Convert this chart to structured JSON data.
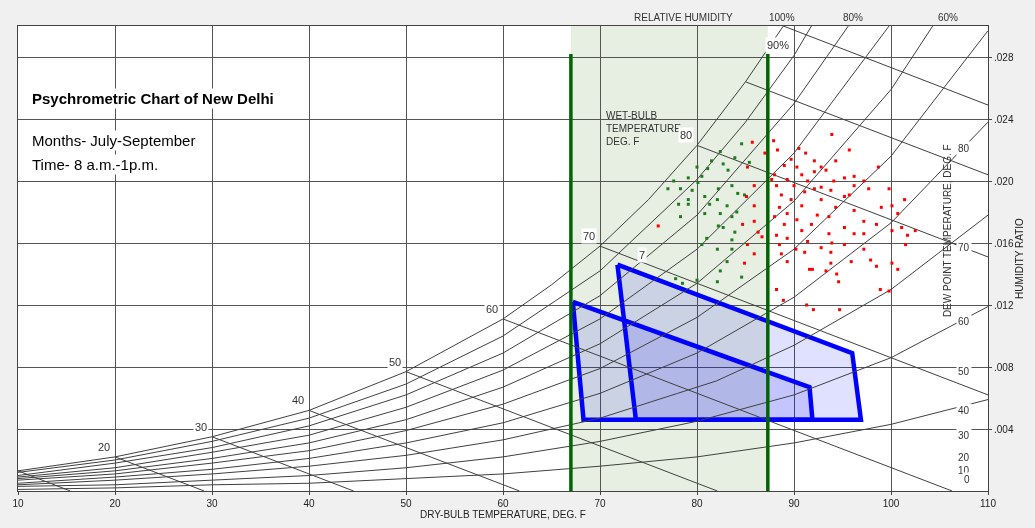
{
  "chart_data": {
    "type": "scatter",
    "title": "Psychrometric Chart of New Delhi",
    "xlabel": "DRY-BULB TEMPERATURE, DEG. F",
    "ylabel": "HUMIDITY RATIO",
    "y2label": "DEW POINT TEMPERATURE, DEG. F",
    "annotations": [
      "Months- July-September",
      "Time- 8 a.m.-1p.m.",
      "RELATIVE HUMIDITY",
      "WET-BULB\nTEMPERATURE\nDEG. F",
      "100%",
      "80%",
      "60%",
      "80",
      "70",
      "60",
      "50",
      "40",
      "30",
      "20",
      "10",
      "0",
      {
        "text": "90%",
        "x": 90,
        "y": 0.0281
      },
      {
        "text": "7",
        "x": 75.2,
        "y": 0.0146
      },
      {
        "text": "20",
        "x": 20,
        "y": 0.0022
      },
      {
        "text": "30",
        "x": 30,
        "y": 0.0035
      },
      {
        "text": "40",
        "x": 40,
        "y": 0.0052
      },
      {
        "text": "50",
        "x": 50,
        "y": 0.0077
      },
      {
        "text": "60",
        "x": 60,
        "y": 0.0111
      },
      {
        "text": "70",
        "x": 70,
        "y": 0.0158
      },
      {
        "text": "80",
        "x": 80,
        "y": 0.0223
      }
    ],
    "xlim": [
      10,
      110
    ],
    "xticks": [
      10,
      20,
      30,
      40,
      50,
      60,
      70,
      80,
      90,
      100,
      110
    ],
    "ylim": [
      0,
      0.03
    ],
    "yticks": [
      {
        "value": 0.004,
        "label": ".004"
      },
      {
        "value": 0.008,
        "label": ".008"
      },
      {
        "value": 0.012,
        "label": ".012"
      },
      {
        "value": 0.016,
        "label": ".016"
      },
      {
        "value": 0.02,
        "label": ".020"
      },
      {
        "value": 0.024,
        "label": ".024"
      },
      {
        "value": 0.028,
        "label": ".028"
      }
    ],
    "grid": true,
    "bands": [
      {
        "axis": "x",
        "from": 67,
        "to": 87.3,
        "color": "#e6efe1"
      }
    ],
    "ref_lines": [
      {
        "axis": "x",
        "value": 67,
        "color": "#006400"
      },
      {
        "axis": "x",
        "value": 87.3,
        "color": "#006400"
      }
    ],
    "series": [
      {
        "type": "line",
        "color": "#404040",
        "x": [
          10,
          20,
          30,
          40,
          50,
          60,
          65,
          70,
          75,
          80,
          85,
          88.9
        ],
        "values": [
          0.0013,
          0.0022,
          0.0035,
          0.0052,
          0.0077,
          0.0111,
          0.0133,
          0.0158,
          0.0188,
          0.0223,
          0.0264,
          0.03
        ]
      },
      {
        "type": "line",
        "color": "#404040",
        "x": [
          10,
          20,
          30,
          40,
          50,
          60,
          70,
          80,
          85,
          90,
          91.8
        ],
        "values": [
          0.0012,
          0.002,
          0.0032,
          0.0047,
          0.0069,
          0.01,
          0.0142,
          0.0201,
          0.0238,
          0.0281,
          0.03
        ]
      },
      {
        "type": "line",
        "color": "#404040",
        "x": [
          10,
          20,
          30,
          40,
          50,
          60,
          70,
          80,
          90,
          95.6
        ],
        "values": [
          0.001,
          0.0018,
          0.0028,
          0.0042,
          0.0062,
          0.0089,
          0.0126,
          0.0178,
          0.025,
          0.03
        ]
      },
      {
        "type": "line",
        "color": "#404040",
        "x": [
          10,
          20,
          30,
          40,
          50,
          60,
          70,
          80,
          90,
          99.8
        ],
        "values": [
          0.0009,
          0.0015,
          0.0025,
          0.0036,
          0.0054,
          0.0078,
          0.0111,
          0.0156,
          0.0218,
          0.03
        ]
      },
      {
        "type": "line",
        "color": "#404040",
        "x": [
          10,
          20,
          30,
          40,
          50,
          60,
          70,
          80,
          90,
          100,
          104.3
        ],
        "values": [
          0.0008,
          0.0013,
          0.0021,
          0.0031,
          0.0046,
          0.0067,
          0.0095,
          0.0134,
          0.0187,
          0.0259,
          0.03
        ]
      },
      {
        "type": "line",
        "color": "#404040",
        "x": [
          10,
          20,
          30,
          40,
          50,
          60,
          70,
          80,
          90,
          100,
          110
        ],
        "values": [
          0.0007,
          0.0011,
          0.0018,
          0.0026,
          0.0039,
          0.0056,
          0.0079,
          0.0112,
          0.0156,
          0.0216,
          0.0297
        ]
      },
      {
        "type": "line",
        "color": "#404040",
        "x": [
          10,
          20,
          30,
          40,
          50,
          60,
          70,
          80,
          90,
          100,
          110
        ],
        "values": [
          0.0005,
          0.0009,
          0.0014,
          0.0021,
          0.0031,
          0.0044,
          0.0063,
          0.0089,
          0.0125,
          0.0173,
          0.0238
        ]
      },
      {
        "type": "line",
        "color": "#404040",
        "x": [
          10,
          20,
          30,
          40,
          50,
          60,
          70,
          78,
          82,
          90,
          100,
          110
        ],
        "values": [
          0.0004,
          0.0007,
          0.0011,
          0.0016,
          0.0023,
          0.0033,
          0.0047,
          0.0063,
          0.0071,
          0.0094,
          0.013,
          0.0178
        ]
      },
      {
        "type": "line",
        "color": "#404040",
        "x": [
          10,
          20,
          30,
          40,
          50,
          60,
          70,
          80,
          90,
          100,
          110
        ],
        "values": [
          0.0003,
          0.0004,
          0.0007,
          0.001,
          0.0015,
          0.0022,
          0.0032,
          0.0045,
          0.0062,
          0.0086,
          0.0119
        ]
      },
      {
        "type": "line",
        "color": "#404040",
        "x": [
          10,
          20,
          30,
          40,
          50,
          60,
          70,
          80,
          90,
          100,
          110
        ],
        "values": [
          0.0001,
          0.0002,
          0.0004,
          0.0005,
          0.0008,
          0.0011,
          0.0016,
          0.0022,
          0.0031,
          0.0043,
          0.0059
        ]
      },
      {
        "type": "line",
        "color": "#404040",
        "x": [
          10,
          15.4
        ],
        "values": [
          0.0013,
          0
        ]
      },
      {
        "type": "line",
        "color": "#404040",
        "x": [
          20,
          29.2
        ],
        "values": [
          0.0022,
          0
        ]
      },
      {
        "type": "line",
        "color": "#404040",
        "x": [
          30,
          44.6
        ],
        "values": [
          0.0035,
          0
        ]
      },
      {
        "type": "line",
        "color": "#404040",
        "x": [
          40,
          61.7
        ],
        "values": [
          0.0052,
          0
        ]
      },
      {
        "type": "line",
        "color": "#404040",
        "x": [
          50,
          82.1
        ],
        "values": [
          0.0077,
          0
        ]
      },
      {
        "type": "line",
        "color": "#404040",
        "x": [
          60,
          106.3
        ],
        "values": [
          0.0111,
          0
        ]
      },
      {
        "type": "line",
        "color": "#404040",
        "x": [
          70,
          110
        ],
        "values": [
          0.0158,
          0.0062
        ]
      },
      {
        "type": "line",
        "color": "#404040",
        "x": [
          80,
          110
        ],
        "values": [
          0.0223,
          0.0151
        ]
      },
      {
        "type": "line",
        "color": "#404040",
        "x": [
          85,
          110
        ],
        "values": [
          0.0264,
          0.0204
        ]
      },
      {
        "type": "line",
        "color": "#404040",
        "x": [
          88.9,
          110
        ],
        "values": [
          0.03,
          0.0249
        ]
      },
      {
        "type": "area",
        "color": "#0000ff",
        "x": [
          71.8,
          96.0,
          96.9,
          73.7,
          71.8
        ],
        "values": [
          0.0146,
          0.0089,
          0.0046,
          0.0046,
          0.0146
        ]
      },
      {
        "type": "area",
        "color": "#0000ff",
        "x": [
          67.2,
          91.6,
          91.9,
          68.3,
          67.2
        ],
        "values": [
          0.0122,
          0.0067,
          0.0046,
          0.0046,
          0.0122
        ]
      },
      {
        "color": "#1e7b1e",
        "marker": "square",
        "x": [
          82.4,
          83.9,
          81.5,
          82.7,
          80.0,
          81.1,
          83.2,
          80.5,
          79.1,
          77.6,
          77.0,
          78.3,
          79.5,
          82.2,
          83.6,
          80.8,
          82.1,
          84.2,
          84.9,
          78.1,
          79.1,
          81.3,
          83.1,
          84.1,
          82.4,
          78.3,
          80.8,
          83.6,
          82.7,
          82.2,
          83.9,
          81.0,
          83.6,
          82.1,
          83.6,
          80.5,
          82.4,
          80.0,
          82.1,
          78.5,
          77.8,
          84.6,
          83.1,
          79.1,
          80.1,
          84.6,
          85.4
        ],
        "values": [
          0.0219,
          0.0215,
          0.0213,
          0.0211,
          0.0209,
          0.0208,
          0.0207,
          0.0203,
          0.0202,
          0.02,
          0.0195,
          0.0195,
          0.0194,
          0.0195,
          0.0197,
          0.019,
          0.0188,
          0.0192,
          0.0191,
          0.0185,
          0.0185,
          0.0185,
          0.0184,
          0.018,
          0.0179,
          0.0177,
          0.0179,
          0.0177,
          0.017,
          0.0171,
          0.0167,
          0.0163,
          0.0162,
          0.0156,
          0.0156,
          0.0159,
          0.0142,
          0.0136,
          0.0135,
          0.0134,
          0.0137,
          0.0138,
          0.0148,
          0.0188,
          0.0199,
          0.0224,
          0.0212
        ]
      },
      {
        "color": "#ff0000",
        "marker": "square",
        "x": [
          93.9,
          87.9,
          88.3,
          90.5,
          91.2,
          95.7,
          89.7,
          92.1,
          94.3,
          89.0,
          90.3,
          92.8,
          93.3,
          98.7,
          88.0,
          90.8,
          92.1,
          95.2,
          96.2,
          89.3,
          91.4,
          94.1,
          97.2,
          88.2,
          90.0,
          92.8,
          96.2,
          97.7,
          99.8,
          88.7,
          91.1,
          92.1,
          93.8,
          95.2,
          89.7,
          92.8,
          95.7,
          101.4,
          88.5,
          90.8,
          94.3,
          99.0,
          100.1,
          89.3,
          92.4,
          96.2,
          100.7,
          88.0,
          90.3,
          93.6,
          97.2,
          89.0,
          91.8,
          95.2,
          98.5,
          102.5,
          88.2,
          90.8,
          93.6,
          96.2,
          101.1,
          89.3,
          91.4,
          93.9,
          97.2,
          101.7,
          88.5,
          90.2,
          92.8,
          95.2,
          100.1,
          101.5,
          88.7,
          91.1,
          93.8,
          97.2,
          89.3,
          91.6,
          93.8,
          95.9,
          97.9,
          91.9,
          93.3,
          94.4,
          98.5,
          100.1,
          100.7,
          94.6,
          88.2,
          88.9,
          98.9,
          99.8,
          91.3,
          92.0,
          94.7,
          87.7,
          85.7,
          87.0,
          85.2,
          85.9,
          85.1,
          85.9,
          84.7,
          85.9,
          86.3,
          85.2,
          85.9,
          84.9,
          86.7,
          76.0
        ],
        "values": [
          0.023,
          0.0226,
          0.022,
          0.0221,
          0.0218,
          0.022,
          0.0214,
          0.0213,
          0.0213,
          0.021,
          0.0209,
          0.0209,
          0.0207,
          0.0209,
          0.0204,
          0.0204,
          0.0206,
          0.0202,
          0.0203,
          0.0201,
          0.02,
          0.02,
          0.02,
          0.0197,
          0.0197,
          0.0196,
          0.0197,
          0.0195,
          0.0195,
          0.0191,
          0.0193,
          0.0195,
          0.0194,
          0.019,
          0.0188,
          0.0188,
          0.0191,
          0.0188,
          0.0183,
          0.0184,
          0.0183,
          0.0183,
          0.0184,
          0.0179,
          0.0178,
          0.0181,
          0.0179,
          0.0177,
          0.0175,
          0.0177,
          0.0174,
          0.0172,
          0.0172,
          0.017,
          0.0172,
          0.0168,
          0.0165,
          0.0168,
          0.0166,
          0.0166,
          0.017,
          0.0163,
          0.0161,
          0.016,
          0.0166,
          0.0165,
          0.0159,
          0.0156,
          0.0157,
          0.0159,
          0.0168,
          0.0159,
          0.0153,
          0.0154,
          0.0154,
          0.0156,
          0.0148,
          0.0143,
          0.0147,
          0.0148,
          0.0149,
          0.0143,
          0.0142,
          0.014,
          0.0145,
          0.0147,
          0.0143,
          0.0135,
          0.013,
          0.0123,
          0.013,
          0.0129,
          0.012,
          0.0117,
          0.0117,
          0.0201,
          0.0225,
          0.0218,
          0.0209,
          0.0197,
          0.019,
          0.0184,
          0.0172,
          0.0174,
          0.0167,
          0.0159,
          0.0153,
          0.0147,
          0.0164,
          0.0171
        ]
      }
    ]
  }
}
